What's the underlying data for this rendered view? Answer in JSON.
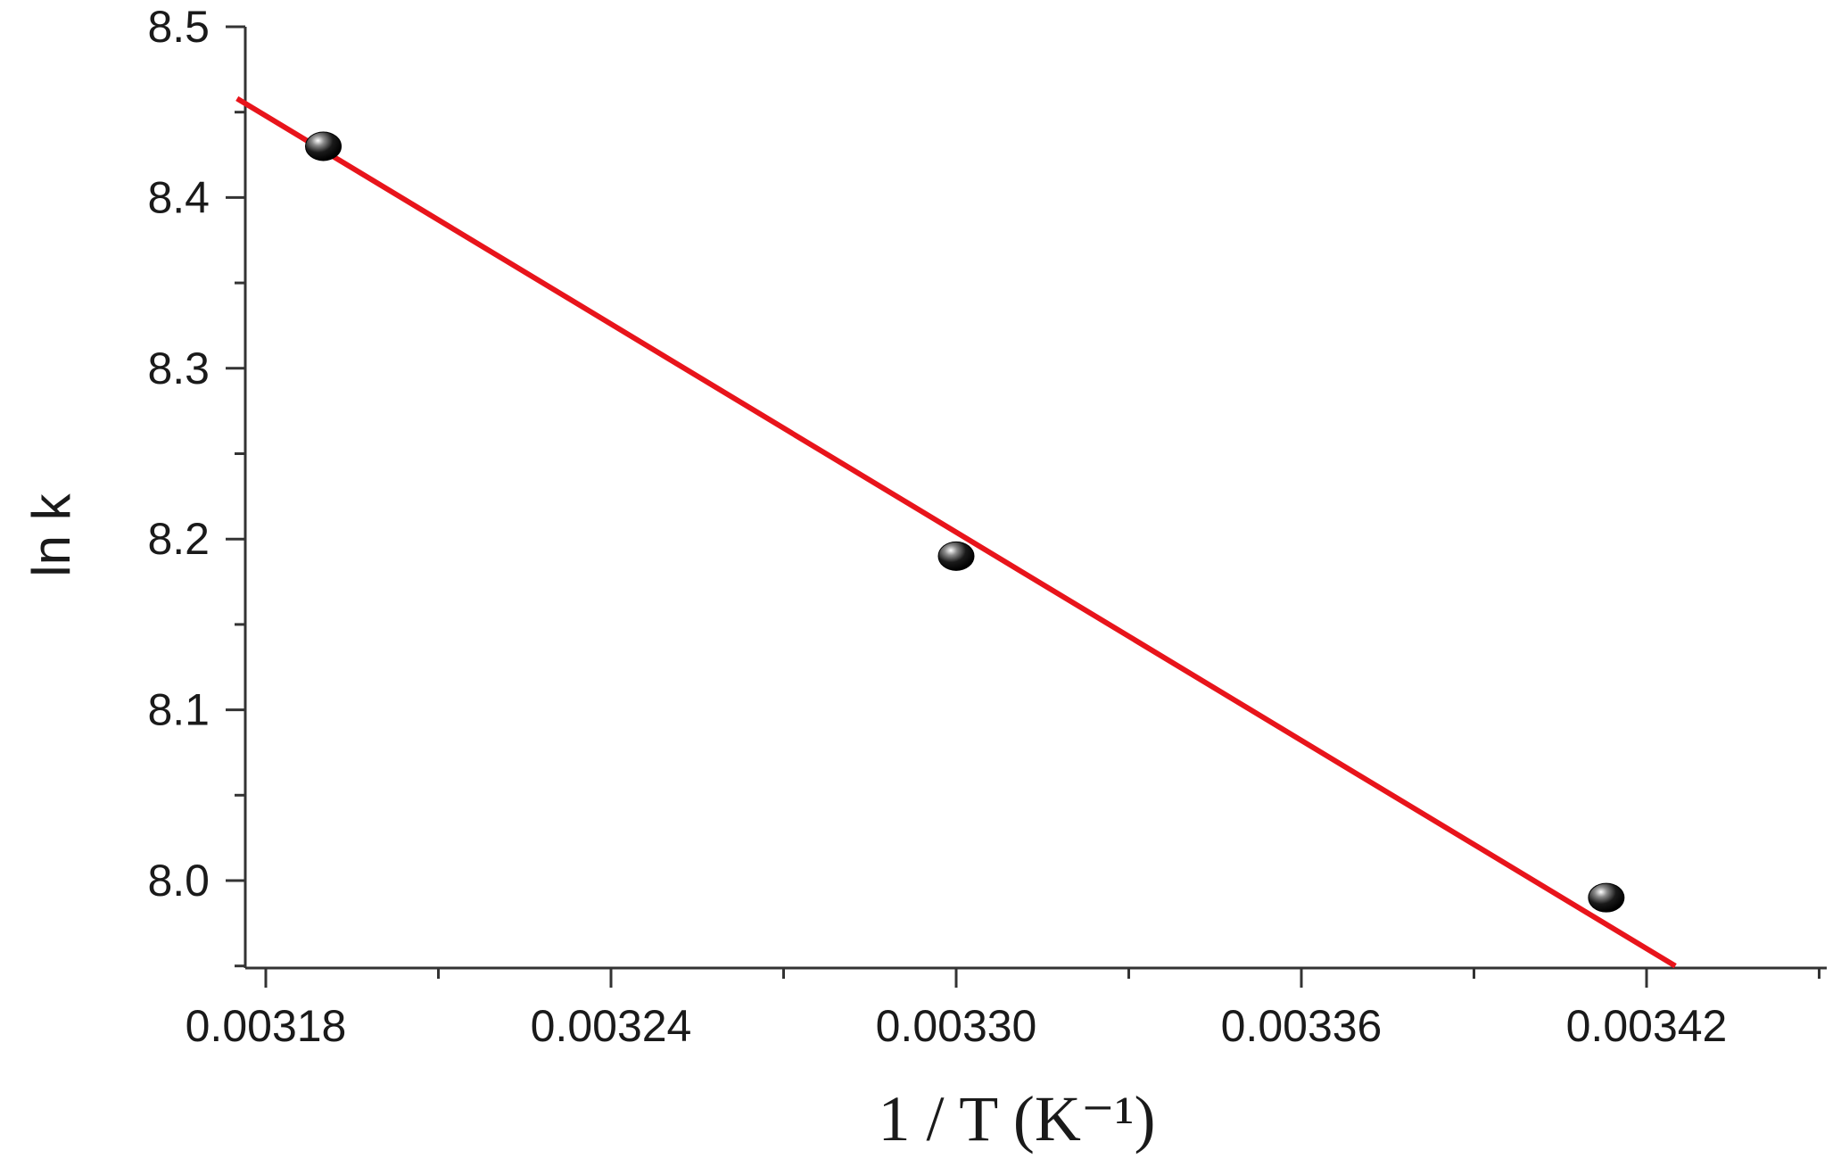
{
  "chart_data": {
    "type": "scatter",
    "title": "",
    "xlabel": "1 / T (K⁻¹)",
    "ylabel": "ln k",
    "xlim": [
      0.003175,
      0.00345
    ],
    "ylim": [
      7.95,
      8.5
    ],
    "x_ticks": [
      0.00318,
      0.00324,
      0.0033,
      0.00336,
      0.00342
    ],
    "x_tick_labels": [
      "0.00318",
      "0.00324",
      "0.00330",
      "0.00336",
      "0.00342"
    ],
    "y_ticks": [
      8.0,
      8.1,
      8.2,
      8.3,
      8.4,
      8.5
    ],
    "y_tick_labels": [
      "8.0",
      "8.1",
      "8.2",
      "8.3",
      "8.4",
      "8.5"
    ],
    "grid": false,
    "series": [
      {
        "type": "scatter",
        "color": "#000000",
        "points": [
          {
            "x": 0.00319,
            "y": 8.43
          },
          {
            "x": 0.0033,
            "y": 8.19
          },
          {
            "x": 0.003413,
            "y": 7.99
          }
        ]
      },
      {
        "type": "line",
        "color": "#e8141b",
        "points": [
          {
            "x": 0.003175,
            "y": 8.458
          },
          {
            "x": 0.003425,
            "y": 7.95
          }
        ]
      }
    ]
  }
}
